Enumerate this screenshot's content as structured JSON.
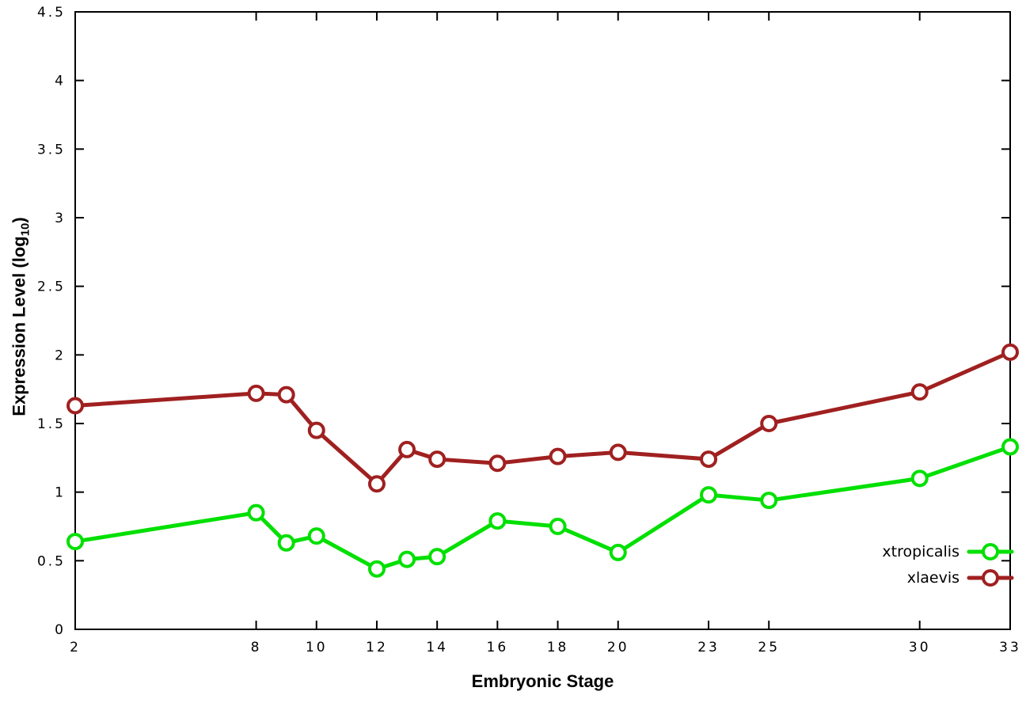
{
  "chart_data": {
    "type": "line",
    "title": "",
    "xlabel": "Embryonic Stage",
    "ylabel": "Expression Level (log10)",
    "ylabel_parts": {
      "main": "Expression Level (log",
      "sub": "10",
      "close": ")"
    },
    "xlim": [
      2,
      33
    ],
    "ylim": [
      0,
      4.5
    ],
    "x_ticks": [
      2,
      8,
      10,
      12,
      14,
      16,
      18,
      20,
      23,
      25,
      30,
      33
    ],
    "y_ticks": [
      0,
      0.5,
      1,
      1.5,
      2,
      2.5,
      3,
      3.5,
      4,
      4.5
    ],
    "grid": false,
    "legend_position": "right-lower",
    "x": [
      2,
      8,
      9,
      10,
      12,
      13,
      14,
      16,
      18,
      20,
      23,
      25,
      30,
      33
    ],
    "series": [
      {
        "name": "xtropicalis",
        "color": "#00e000",
        "values": [
          0.64,
          0.85,
          0.63,
          0.68,
          0.44,
          0.51,
          0.53,
          0.79,
          0.75,
          0.56,
          0.98,
          0.94,
          1.1,
          1.33
        ]
      },
      {
        "name": "xlaevis",
        "color": "#a02020",
        "values": [
          1.63,
          1.72,
          1.71,
          1.45,
          1.06,
          1.31,
          1.24,
          1.21,
          1.26,
          1.29,
          1.24,
          1.5,
          1.73,
          2.02
        ]
      }
    ]
  }
}
